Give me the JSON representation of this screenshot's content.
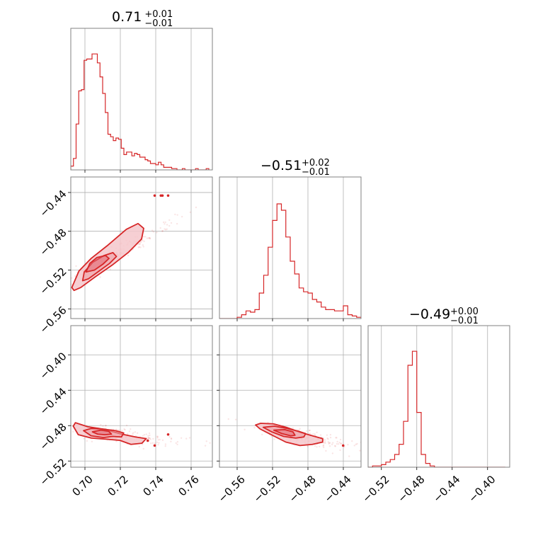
{
  "colors": {
    "accent": "#d62728",
    "grid": "#b0b0b0",
    "frame": "#808080",
    "fill": "#f4c7cb"
  },
  "chart_data": [
    {
      "type": "histogram",
      "panel": "diag-0",
      "title": {
        "main": "0.71",
        "sup": "+0.01",
        "sub": "−0.01"
      },
      "xlim": [
        0.692,
        0.772
      ],
      "xticks": [
        0.7,
        0.72,
        0.74,
        0.76
      ],
      "x": [
        0.692,
        0.6935,
        0.695,
        0.6965,
        0.698,
        0.6995,
        0.701,
        0.7025,
        0.704,
        0.7055,
        0.707,
        0.7085,
        0.71,
        0.7115,
        0.713,
        0.7145,
        0.716,
        0.7175,
        0.719,
        0.7205,
        0.722,
        0.7235,
        0.725,
        0.7265,
        0.728,
        0.7295,
        0.731,
        0.7325,
        0.734,
        0.7355,
        0.737,
        0.7385,
        0.74,
        0.7415,
        0.743,
        0.7445,
        0.746,
        0.7475,
        0.749,
        0.7505,
        0.752,
        0.7535,
        0.755,
        0.7565,
        0.758,
        0.7595,
        0.761,
        0.7625,
        0.764,
        0.7655,
        0.767,
        0.7685,
        0.77
      ],
      "values": [
        0.03,
        0.09,
        0.36,
        0.62,
        0.63,
        0.86,
        0.87,
        0.87,
        0.91,
        0.91,
        0.84,
        0.73,
        0.6,
        0.45,
        0.28,
        0.26,
        0.23,
        0.25,
        0.24,
        0.17,
        0.12,
        0.14,
        0.14,
        0.11,
        0.13,
        0.12,
        0.1,
        0.1,
        0.08,
        0.07,
        0.05,
        0.05,
        0.04,
        0.06,
        0.04,
        0.02,
        0.02,
        0.02,
        0.01,
        0.01,
        0.0,
        0.0,
        0.01,
        0.0,
        0.0,
        0.0,
        0.0,
        0.01,
        0.0,
        0.0,
        0.0,
        0.01
      ]
    },
    {
      "type": "histogram",
      "panel": "diag-1",
      "title": {
        "main": "−0.51",
        "sup": "+0.02",
        "sub": "−0.01"
      },
      "xlim": [
        -0.58,
        -0.42
      ],
      "xticks": [
        -0.56,
        -0.52,
        -0.48,
        -0.44
      ],
      "x": [
        -0.58,
        -0.575,
        -0.57,
        -0.565,
        -0.56,
        -0.555,
        -0.55,
        -0.545,
        -0.54,
        -0.535,
        -0.53,
        -0.525,
        -0.52,
        -0.515,
        -0.51,
        -0.505,
        -0.5,
        -0.495,
        -0.49,
        -0.485,
        -0.48,
        -0.475,
        -0.47,
        -0.465,
        -0.46,
        -0.455,
        -0.45,
        -0.445,
        -0.44,
        -0.435,
        -0.43,
        -0.425,
        -0.42
      ],
      "values": [
        0.0,
        0.0,
        0.0,
        0.0,
        0.01,
        0.03,
        0.06,
        0.05,
        0.07,
        0.2,
        0.34,
        0.56,
        0.77,
        0.9,
        0.85,
        0.64,
        0.45,
        0.35,
        0.24,
        0.21,
        0.2,
        0.15,
        0.13,
        0.09,
        0.07,
        0.07,
        0.06,
        0.06,
        0.1,
        0.03,
        0.02,
        0.01,
        0.0
      ]
    },
    {
      "type": "histogram",
      "panel": "diag-2",
      "title": {
        "main": "−0.49",
        "sup": "+0.00",
        "sub": "−0.01"
      },
      "xlim": [
        -0.535,
        -0.375
      ],
      "xticks": [
        -0.52,
        -0.48,
        -0.44,
        -0.4
      ],
      "x": [
        -0.535,
        -0.53,
        -0.525,
        -0.52,
        -0.515,
        -0.51,
        -0.505,
        -0.5,
        -0.495,
        -0.49,
        -0.485,
        -0.48,
        -0.475,
        -0.47,
        -0.465,
        -0.46,
        -0.455,
        -0.45,
        -0.445,
        -0.44,
        -0.435,
        -0.43,
        -0.425,
        -0.42,
        -0.415,
        -0.41,
        -0.405,
        -0.4,
        -0.395,
        -0.39,
        -0.385,
        -0.38
      ],
      "values": [
        0.0,
        0.01,
        0.01,
        0.02,
        0.04,
        0.06,
        0.1,
        0.18,
        0.36,
        0.8,
        0.91,
        0.43,
        0.1,
        0.03,
        0.01,
        0.0,
        0.0,
        0.0,
        0.0,
        0.0,
        0.0,
        0.0,
        0.0,
        0.0,
        0.0,
        0.0,
        0.0,
        0.0,
        0.0,
        0.0,
        0.0
      ]
    },
    {
      "type": "scatter-contour",
      "panel": "lower-1-0",
      "xlim": [
        0.692,
        0.772
      ],
      "ylim": [
        -0.57,
        -0.424
      ],
      "xticks": [
        0.7,
        0.72,
        0.74,
        0.76
      ],
      "yticks": [
        -0.56,
        -0.52,
        -0.48,
        -0.44
      ],
      "outliers": {
        "x": [
          0.7394,
          0.7429,
          0.7438,
          0.747
        ],
        "y": [
          -0.4432,
          -0.4432,
          -0.4432,
          -0.4432
        ]
      },
      "density": {
        "center": [
          0.707,
          -0.515
        ],
        "slope": 1.0,
        "spread_x": 0.012,
        "spread_perp": 0.004
      },
      "contours": [
        {
          "level": "outer",
          "x": [
            0.6926,
            0.6938,
            0.6976,
            0.7058,
            0.7153,
            0.7244,
            0.732,
            0.7332,
            0.73,
            0.7234,
            0.7125,
            0.7035,
            0.6966,
            0.6926
          ],
          "y": [
            -0.538,
            -0.541,
            -0.538,
            -0.527,
            -0.515,
            -0.502,
            -0.488,
            -0.477,
            -0.472,
            -0.478,
            -0.495,
            -0.508,
            -0.521,
            -0.538
          ]
        },
        {
          "level": "middle",
          "x": [
            0.6987,
            0.702,
            0.708,
            0.714,
            0.7178,
            0.7158,
            0.7108,
            0.7044,
            0.6996,
            0.6987
          ],
          "y": [
            -0.531,
            -0.529,
            -0.521,
            -0.513,
            -0.506,
            -0.502,
            -0.505,
            -0.512,
            -0.522,
            -0.531
          ]
        },
        {
          "level": "inner",
          "x": [
            0.7006,
            0.7054,
            0.7101,
            0.7136,
            0.7116,
            0.7068,
            0.7028,
            0.7006
          ],
          "y": [
            -0.522,
            -0.52,
            -0.514,
            -0.508,
            -0.505,
            -0.507,
            -0.513,
            -0.522
          ]
        }
      ]
    },
    {
      "type": "scatter-contour",
      "panel": "lower-2-0",
      "xlim": [
        0.692,
        0.772
      ],
      "ylim": [
        -0.527,
        -0.367
      ],
      "xticks": [
        0.7,
        0.72,
        0.74,
        0.76
      ],
      "yticks": [
        -0.52,
        -0.48,
        -0.44,
        -0.4
      ],
      "outliers": {
        "x": [
          0.7394,
          0.7355,
          0.747
        ],
        "y": [
          -0.5025,
          -0.497,
          -0.49
        ]
      },
      "density": {
        "center": [
          0.71,
          -0.489
        ],
        "slope": -0.25,
        "spread_x": 0.013,
        "spread_perp": 0.004
      },
      "contours": [
        {
          "level": "outer",
          "x": [
            0.6934,
            0.6962,
            0.7036,
            0.7125,
            0.7198,
            0.726,
            0.7322,
            0.7346,
            0.7285,
            0.7208,
            0.71,
            0.7015,
            0.6946,
            0.6934
          ],
          "y": [
            -0.4806,
            -0.4902,
            -0.4941,
            -0.4954,
            -0.4967,
            -0.5012,
            -0.4999,
            -0.4947,
            -0.4928,
            -0.4896,
            -0.4838,
            -0.4812,
            -0.4767,
            -0.4806
          ]
        },
        {
          "level": "middle",
          "x": [
            0.6992,
            0.7035,
            0.7104,
            0.7156,
            0.7206,
            0.7219,
            0.7172,
            0.7099,
            0.7035,
            0.6992
          ],
          "y": [
            -0.4857,
            -0.4915,
            -0.4935,
            -0.4922,
            -0.4928,
            -0.4883,
            -0.4857,
            -0.4838,
            -0.4832,
            -0.4857
          ]
        },
        {
          "level": "inner",
          "x": [
            0.7042,
            0.7072,
            0.7112,
            0.715,
            0.7134,
            0.709,
            0.7042
          ],
          "y": [
            -0.487,
            -0.4896,
            -0.4903,
            -0.4896,
            -0.4864,
            -0.4851,
            -0.487
          ]
        }
      ]
    },
    {
      "type": "scatter-contour",
      "panel": "lower-2-1",
      "xlim": [
        -0.58,
        -0.42
      ],
      "ylim": [
        -0.527,
        -0.367
      ],
      "xticks": [
        -0.56,
        -0.52,
        -0.48,
        -0.44
      ],
      "yticks": [
        -0.52,
        -0.48,
        -0.44,
        -0.4
      ],
      "outliers": {
        "x": [
          -0.4402
        ],
        "y": [
          -0.5025
        ]
      },
      "density": {
        "center": [
          -0.505,
          -0.489
        ],
        "slope": -0.2,
        "spread_x": 0.022,
        "spread_perp": 0.004
      },
      "contours": [
        {
          "level": "outer",
          "x": [
            -0.5392,
            -0.534,
            -0.519,
            -0.505,
            -0.489,
            -0.475,
            -0.4634,
            -0.4634,
            -0.475,
            -0.4882,
            -0.5045,
            -0.519,
            -0.5335,
            -0.5392
          ],
          "y": [
            -0.4793,
            -0.4838,
            -0.4915,
            -0.4986,
            -0.5025,
            -0.5012,
            -0.4986,
            -0.4947,
            -0.4915,
            -0.4877,
            -0.4819,
            -0.478,
            -0.4774,
            -0.4793
          ]
        },
        {
          "level": "middle",
          "x": [
            -0.5306,
            -0.521,
            -0.5074,
            -0.4938,
            -0.4846,
            -0.4826,
            -0.4906,
            -0.5034,
            -0.5178,
            -0.5306
          ],
          "y": [
            -0.4819,
            -0.487,
            -0.4922,
            -0.4941,
            -0.4928,
            -0.489,
            -0.4864,
            -0.4832,
            -0.4806,
            -0.4819
          ]
        },
        {
          "level": "inner",
          "x": [
            -0.5186,
            -0.5095,
            -0.4994,
            -0.4946,
            -0.497,
            -0.5062,
            -0.5186
          ],
          "y": [
            -0.4851,
            -0.489,
            -0.4915,
            -0.4909,
            -0.487,
            -0.4845,
            -0.4851
          ]
        }
      ]
    }
  ]
}
